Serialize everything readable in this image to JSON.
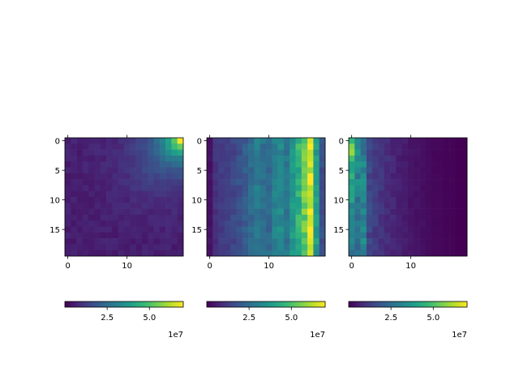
{
  "chart_data": [
    {
      "type": "heatmap",
      "panel": 1,
      "colormap": "viridis",
      "size": [
        20,
        20
      ],
      "x_ticks": [
        0,
        10
      ],
      "y_ticks": [
        0,
        5,
        10,
        15
      ],
      "colorbar": {
        "range": [
          0,
          70000000
        ],
        "ticks": [
          2.5,
          5.0
        ],
        "tick_labels": [
          "2.5",
          "5.0"
        ],
        "offset_text": "1e7"
      },
      "description_values": "low everywhere (~1e7), rising toward top-right corner (~7e7)"
    },
    {
      "type": "heatmap",
      "panel": 2,
      "colormap": "viridis",
      "size": [
        20,
        20
      ],
      "x_ticks": [
        0,
        10
      ],
      "y_ticks": [
        0,
        5,
        10,
        15
      ],
      "colorbar": {
        "range": [
          0,
          70000000
        ],
        "ticks": [
          2.5,
          5.0
        ],
        "tick_labels": [
          "2.5",
          "5.0"
        ],
        "offset_text": "1e7"
      },
      "column_levels": [
        0.05,
        0.15,
        0.18,
        0.2,
        0.22,
        0.25,
        0.3,
        0.35,
        0.42,
        0.38,
        0.35,
        0.45,
        0.48,
        0.4,
        0.55,
        0.65,
        0.8,
        1.0,
        0.55,
        0.25
      ]
    },
    {
      "type": "heatmap",
      "panel": 3,
      "colormap": "viridis",
      "size": [
        20,
        20
      ],
      "x_ticks": [
        0,
        10
      ],
      "y_ticks": [
        0,
        5,
        10,
        15
      ],
      "colorbar": {
        "range": [
          0,
          70000000
        ],
        "ticks": [
          2.5,
          5.0
        ],
        "tick_labels": [
          "2.5",
          "5.0"
        ],
        "offset_text": "1e7"
      },
      "column_levels": [
        0.75,
        0.55,
        0.45,
        0.22,
        0.18,
        0.15,
        0.13,
        0.11,
        0.09,
        0.08,
        0.06,
        0.05,
        0.04,
        0.03,
        0.02,
        0.02,
        0.01,
        0.01,
        0.0,
        0.0
      ]
    }
  ]
}
